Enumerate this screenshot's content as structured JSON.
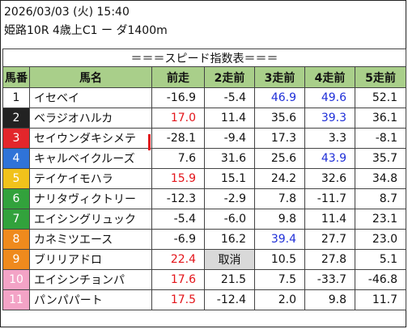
{
  "header": {
    "datetime": "2026/03/03 (火) 15:40",
    "race": "姫路10R 4歳上C1 ー ダ1400m"
  },
  "table": {
    "title": "＝＝＝スピード指数表＝＝＝",
    "columns": [
      "馬番",
      "馬名",
      "前走",
      "2走前",
      "3走前",
      "4走前",
      "5走前"
    ],
    "rows": [
      {
        "num": "1",
        "name": "イセベイ",
        "cells": [
          {
            "v": "-16.9"
          },
          {
            "v": "-5.4"
          },
          {
            "v": "46.9",
            "c": "blue"
          },
          {
            "v": "49.6",
            "c": "blue",
            "b": true
          },
          {
            "v": "52.1"
          }
        ]
      },
      {
        "num": "2",
        "name": "ベラジオハルカ",
        "cells": [
          {
            "v": "17.0",
            "c": "red"
          },
          {
            "v": "11.4"
          },
          {
            "v": "35.6"
          },
          {
            "v": "39.3",
            "c": "blue"
          },
          {
            "v": "36.1"
          }
        ]
      },
      {
        "num": "3",
        "name": "セイウンダキシメテ",
        "cells": [
          {
            "v": "-28.1"
          },
          {
            "v": "-9.4"
          },
          {
            "v": "17.3"
          },
          {
            "v": "3.3"
          },
          {
            "v": "-8.1"
          }
        ]
      },
      {
        "num": "4",
        "name": "キャルベイクルーズ",
        "cells": [
          {
            "v": "7.6"
          },
          {
            "v": "31.6"
          },
          {
            "v": "25.6"
          },
          {
            "v": "43.9",
            "c": "blue"
          },
          {
            "v": "35.7"
          }
        ]
      },
      {
        "num": "5",
        "name": "テイケイモハラ",
        "cells": [
          {
            "v": "15.9",
            "c": "red"
          },
          {
            "v": "15.1"
          },
          {
            "v": "24.2"
          },
          {
            "v": "32.6"
          },
          {
            "v": "34.8"
          }
        ]
      },
      {
        "num": "6",
        "name": "ナリタヴィクトリー",
        "cells": [
          {
            "v": "-12.3"
          },
          {
            "v": "-2.9"
          },
          {
            "v": "7.8"
          },
          {
            "v": "-11.7"
          },
          {
            "v": "8.7"
          }
        ]
      },
      {
        "num": "7",
        "name": "エイシングリュック",
        "cells": [
          {
            "v": "-5.4"
          },
          {
            "v": "-6.0"
          },
          {
            "v": "9.8"
          },
          {
            "v": "11.4"
          },
          {
            "v": "23.1"
          }
        ]
      },
      {
        "num": "8",
        "name": "カネミツエース",
        "cells": [
          {
            "v": "-6.9"
          },
          {
            "v": "16.2"
          },
          {
            "v": "39.4",
            "c": "blue"
          },
          {
            "v": "27.7"
          },
          {
            "v": "23.0"
          }
        ]
      },
      {
        "num": "9",
        "name": "ブリリアドロ",
        "cells": [
          {
            "v": "22.4",
            "c": "red",
            "b": true
          },
          {
            "v": "取消",
            "cancel": true
          },
          {
            "v": "10.5"
          },
          {
            "v": "27.8"
          },
          {
            "v": "5.1"
          }
        ]
      },
      {
        "num": "10",
        "name": "エイシンチョンパ",
        "cells": [
          {
            "v": "17.6",
            "c": "red"
          },
          {
            "v": "21.5"
          },
          {
            "v": "7.5"
          },
          {
            "v": "-33.7"
          },
          {
            "v": "-46.8"
          }
        ]
      },
      {
        "num": "11",
        "name": "パンパパート",
        "cells": [
          {
            "v": "17.5",
            "c": "red"
          },
          {
            "v": "-12.4"
          },
          {
            "v": "2.0"
          },
          {
            "v": "9.8"
          },
          {
            "v": "11.7"
          }
        ]
      }
    ]
  },
  "colors": {
    "header_bg": "#a9cf8a",
    "high_value": "#e3141a",
    "past_high": "#1f2fd8",
    "gate": [
      {
        "bg": "#ffffff",
        "fg": "#111111"
      },
      {
        "bg": "#222222",
        "fg": "#ffffff"
      },
      {
        "bg": "#e3262b",
        "fg": "#ffffff"
      },
      {
        "bg": "#2f73d8",
        "fg": "#ffffff"
      },
      {
        "bg": "#f1c21b",
        "fg": "#ffffff"
      },
      {
        "bg": "#32a23c",
        "fg": "#ffffff"
      },
      {
        "bg": "#32a23c",
        "fg": "#ffffff"
      },
      {
        "bg": "#ef8a1d",
        "fg": "#ffffff"
      },
      {
        "bg": "#ef8a1d",
        "fg": "#ffffff"
      },
      {
        "bg": "#f3a3c6",
        "fg": "#ffffff"
      },
      {
        "bg": "#f3a3c6",
        "fg": "#ffffff"
      }
    ]
  }
}
